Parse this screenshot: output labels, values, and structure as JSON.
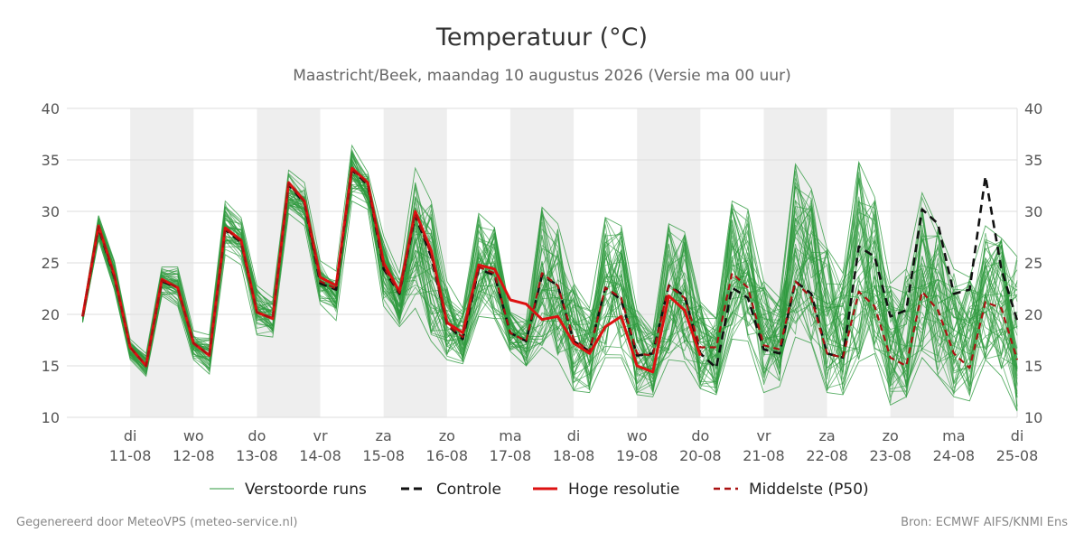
{
  "footer": {
    "generated_by": "Gegenereerd door MeteoVPS (meteo-service.nl)",
    "source": "Bron: ECMWF AIFS/KNMI Ens"
  },
  "colors": {
    "perturbed": "#2e9a3e",
    "control": "#111111",
    "high_res": "#dd1111",
    "p50": "#aa1111",
    "weekend_shade": "#eeeeee",
    "grid": "#dddddd"
  },
  "chart_data": {
    "type": "line",
    "title": "Temperatuur (°C)",
    "subtitle": "Maastricht/Beek, maandag 10 augustus 2026 (Versie ma 00 uur)",
    "ylim": [
      10,
      40
    ],
    "yticks": [
      10,
      15,
      20,
      25,
      30,
      35,
      40
    ],
    "xlim_days": [
      10.0,
      25.0
    ],
    "grid": true,
    "legend_position": "bottom",
    "x_step_hours": 6,
    "x_start": "2026-08-10 06:00",
    "x_ticks": [
      {
        "day": "di",
        "date": "11-08"
      },
      {
        "day": "wo",
        "date": "12-08"
      },
      {
        "day": "do",
        "date": "13-08"
      },
      {
        "day": "vr",
        "date": "14-08"
      },
      {
        "day": "za",
        "date": "15-08"
      },
      {
        "day": "zo",
        "date": "16-08"
      },
      {
        "day": "ma",
        "date": "17-08"
      },
      {
        "day": "di",
        "date": "18-08"
      },
      {
        "day": "wo",
        "date": "19-08"
      },
      {
        "day": "do",
        "date": "20-08"
      },
      {
        "day": "vr",
        "date": "21-08"
      },
      {
        "day": "za",
        "date": "22-08"
      },
      {
        "day": "zo",
        "date": "23-08"
      },
      {
        "day": "ma",
        "date": "24-08"
      },
      {
        "day": "di",
        "date": "25-08"
      }
    ],
    "legend": [
      {
        "key": "perturbed",
        "label": "Verstoorde runs",
        "style": "thin"
      },
      {
        "key": "control",
        "label": "Controle",
        "style": "dashed"
      },
      {
        "key": "high_res",
        "label": "Hoge resolutie",
        "style": "solid"
      },
      {
        "key": "p50",
        "label": "Middelste (P50)",
        "style": "dashed"
      }
    ],
    "series": [
      {
        "name": "Hoge resolutie",
        "values": [
          19.8,
          28.6,
          23.8,
          16.8,
          15.0,
          23.4,
          22.6,
          17.2,
          16.0,
          28.4,
          27.2,
          20.2,
          19.6,
          32.8,
          31.0,
          23.6,
          22.8,
          34.2,
          32.8,
          25.0,
          22.2,
          30.0,
          26.2,
          19.2,
          18.2,
          24.8,
          24.4,
          21.4,
          21.0,
          19.5,
          19.8,
          17.2,
          16.2,
          18.8,
          19.8,
          15.0,
          14.4,
          21.8,
          20.4,
          16.0
        ]
      },
      {
        "name": "Controle",
        "values": [
          19.8,
          28.4,
          23.6,
          16.8,
          15.0,
          23.2,
          22.6,
          17.2,
          16.0,
          28.2,
          27.0,
          20.2,
          19.6,
          32.6,
          30.8,
          23.0,
          22.4,
          34.0,
          32.6,
          24.4,
          22.0,
          29.6,
          25.6,
          19.0,
          17.6,
          24.4,
          23.8,
          18.2,
          17.4,
          23.8,
          22.8,
          17.4,
          16.4,
          22.6,
          21.4,
          16.0,
          16.2,
          22.8,
          21.8,
          16.2,
          14.8,
          22.6,
          21.6,
          16.6,
          16.2,
          23.2,
          22.0,
          16.2,
          15.8,
          26.6,
          25.6,
          19.8,
          20.4,
          30.2,
          28.8,
          22.0,
          22.4,
          33.4,
          24.4,
          19.4
        ]
      },
      {
        "name": "Middelste (P50)",
        "values": [
          19.8,
          28.5,
          23.7,
          16.8,
          15.0,
          23.3,
          22.6,
          17.2,
          16.0,
          28.3,
          27.1,
          20.2,
          19.6,
          32.7,
          30.9,
          23.2,
          22.5,
          34.1,
          32.7,
          24.6,
          22.1,
          29.8,
          25.8,
          19.0,
          17.8,
          24.6,
          24.0,
          18.2,
          17.4,
          24.0,
          22.8,
          17.6,
          16.4,
          22.6,
          21.6,
          16.2,
          16.0,
          22.8,
          21.6,
          16.8,
          16.8,
          24.0,
          22.6,
          17.0,
          16.6,
          23.2,
          21.6,
          16.2,
          15.8,
          22.2,
          20.8,
          15.8,
          15.0,
          22.2,
          20.4,
          16.2,
          14.8,
          21.2,
          20.6,
          15.6
        ]
      }
    ],
    "perturbed_runs": {
      "name": "Verstoorde runs",
      "count": 50,
      "values_min": [
        19.2,
        27.2,
        22.4,
        15.6,
        14.0,
        21.8,
        20.8,
        15.6,
        14.2,
        25.8,
        24.8,
        18.0,
        17.8,
        29.8,
        28.6,
        21.0,
        19.4,
        31.0,
        30.2,
        20.8,
        18.8,
        20.6,
        17.4,
        15.6,
        15.2,
        19.8,
        19.6,
        16.4,
        15.0,
        16.8,
        15.6,
        12.6,
        12.4,
        15.8,
        15.8,
        12.2,
        12.0,
        15.6,
        15.4,
        12.8,
        12.2,
        17.6,
        17.4,
        12.4,
        13.0,
        17.8,
        17.2,
        12.4,
        12.2,
        15.4,
        16.2,
        11.2,
        12.0,
        15.8,
        14.0,
        12.0,
        11.6,
        15.6,
        14.0,
        10.6
      ],
      "values_max": [
        20.2,
        29.6,
        25.2,
        17.6,
        16.2,
        24.6,
        24.6,
        18.4,
        18.0,
        31.0,
        29.4,
        22.8,
        21.6,
        34.0,
        32.8,
        25.2,
        24.2,
        36.4,
        33.8,
        27.6,
        24.0,
        34.2,
        31.0,
        23.2,
        20.6,
        29.8,
        28.4,
        20.2,
        19.4,
        30.4,
        28.8,
        23.0,
        20.6,
        29.4,
        28.6,
        20.4,
        18.4,
        28.8,
        28.0,
        21.2,
        19.6,
        31.0,
        30.2,
        23.2,
        21.6,
        34.6,
        32.2,
        26.4,
        24.0,
        34.8,
        31.4,
        23.0,
        24.4,
        31.8,
        28.4,
        24.4,
        23.6,
        28.6,
        27.4,
        25.6
      ]
    }
  }
}
